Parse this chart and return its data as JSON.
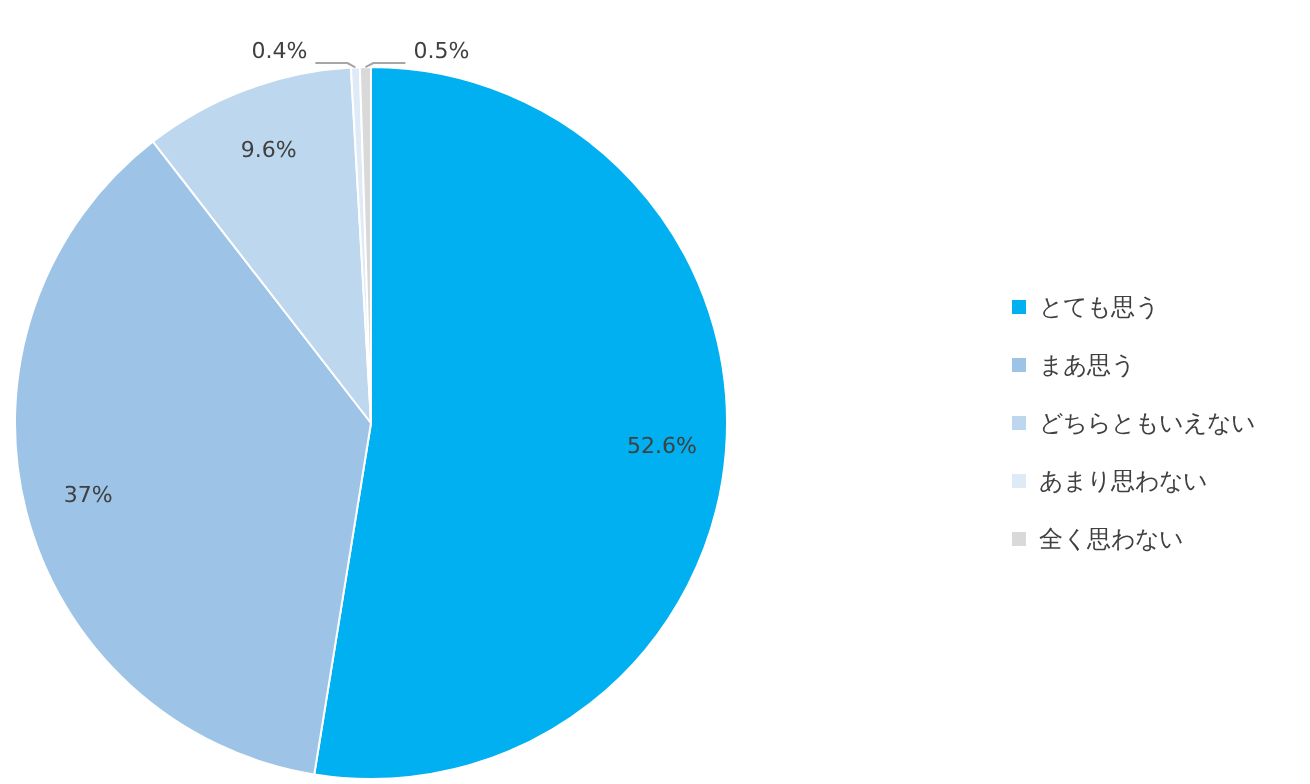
{
  "chart_data": {
    "type": "pie",
    "categories": [
      "とても思う",
      "まあ思う",
      "どちらともいえない",
      "あまり思わない",
      "全く思わない"
    ],
    "values": [
      52.6,
      37,
      9.6,
      0.4,
      0.5
    ],
    "value_labels": [
      "52.6%",
      "37%",
      "9.6%",
      "0.4%",
      "0.5%"
    ],
    "colors": [
      "#00b0f0",
      "#9dc3e6",
      "#bdd7ee",
      "#deebf7",
      "#d9d9d9"
    ],
    "legend": "right"
  }
}
